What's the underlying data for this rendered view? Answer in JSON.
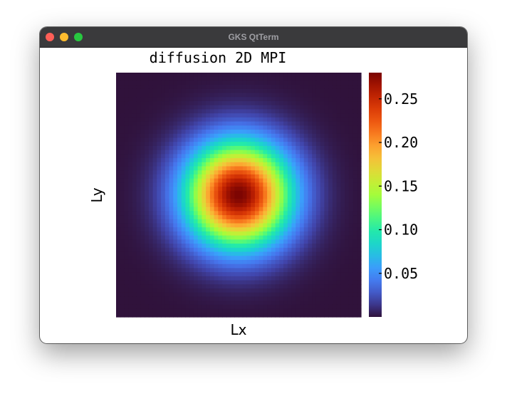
{
  "window": {
    "title": "GKS QtTerm",
    "controls": [
      "close",
      "minimize",
      "maximize"
    ],
    "background_color": "#ffffff"
  },
  "chart_data": {
    "type": "heatmap",
    "title": "diffusion 2D MPI",
    "xlabel": "Lx",
    "ylabel": "Ly",
    "grid_resolution": [
      60,
      60
    ],
    "field": {
      "shape": "gaussian",
      "center": [
        0.5,
        0.5
      ],
      "peak": 0.28,
      "baseline": 0.0,
      "sigma": 0.145
    },
    "colorbar": {
      "colormap": "turbo",
      "range": [
        0.0,
        0.28
      ],
      "ticks": [
        0.05,
        0.1,
        0.15,
        0.2,
        0.25
      ],
      "tick_labels": [
        "0.05",
        "0.10",
        "0.15",
        "0.20",
        "0.25"
      ]
    }
  }
}
